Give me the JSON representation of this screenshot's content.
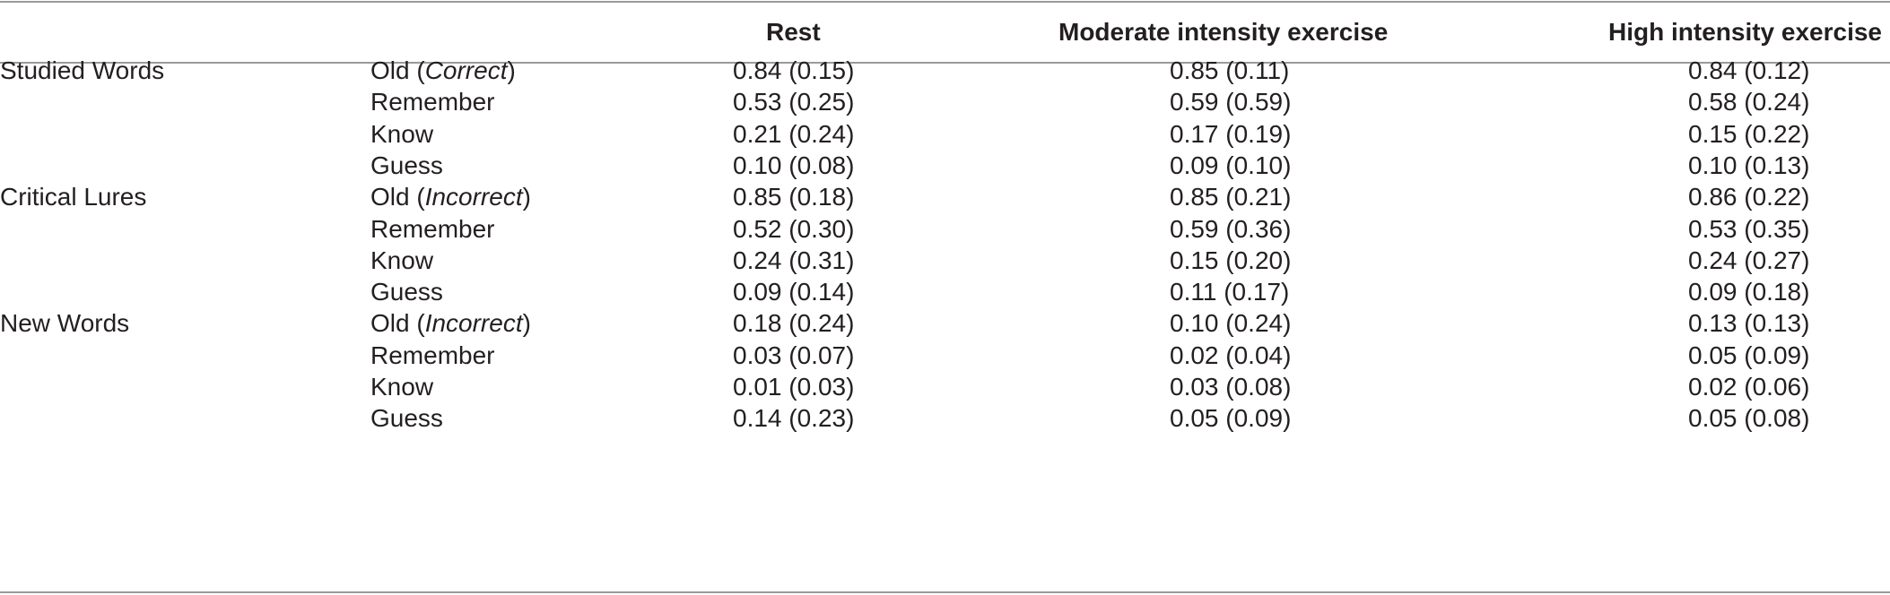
{
  "header": {
    "col_group": "",
    "col_response": "",
    "col_rest": "Rest",
    "col_moderate": "Moderate intensity exercise",
    "col_high": "High intensity exercise"
  },
  "rows": [
    {
      "group": "Studied Words",
      "resp_pre": "Old (",
      "resp_em": "Correct",
      "resp_post": ")",
      "rest": "0.84 (0.15)",
      "moderate": "0.85 (0.11)",
      "high": "0.84 (0.12)"
    },
    {
      "group": "",
      "resp_pre": "Remember",
      "resp_em": "",
      "resp_post": "",
      "rest": "0.53 (0.25)",
      "moderate": "0.59 (0.59)",
      "high": "0.58 (0.24)"
    },
    {
      "group": "",
      "resp_pre": "Know",
      "resp_em": "",
      "resp_post": "",
      "rest": "0.21 (0.24)",
      "moderate": "0.17 (0.19)",
      "high": "0.15 (0.22)"
    },
    {
      "group": "",
      "resp_pre": "Guess",
      "resp_em": "",
      "resp_post": "",
      "rest": "0.10 (0.08)",
      "moderate": "0.09 (0.10)",
      "high": "0.10 (0.13)"
    },
    {
      "group": "Critical Lures",
      "resp_pre": "Old (",
      "resp_em": "Incorrect",
      "resp_post": ")",
      "rest": "0.85 (0.18)",
      "moderate": "0.85 (0.21)",
      "high": "0.86 (0.22)"
    },
    {
      "group": "",
      "resp_pre": "Remember",
      "resp_em": "",
      "resp_post": "",
      "rest": "0.52 (0.30)",
      "moderate": "0.59 (0.36)",
      "high": "0.53 (0.35)"
    },
    {
      "group": "",
      "resp_pre": "Know",
      "resp_em": "",
      "resp_post": "",
      "rest": "0.24 (0.31)",
      "moderate": "0.15 (0.20)",
      "high": "0.24 (0.27)"
    },
    {
      "group": "",
      "resp_pre": "Guess",
      "resp_em": "",
      "resp_post": "",
      "rest": "0.09 (0.14)",
      "moderate": "0.11 (0.17)",
      "high": "0.09 (0.18)"
    },
    {
      "group": "New Words",
      "resp_pre": "Old (",
      "resp_em": "Incorrect",
      "resp_post": ")",
      "rest": "0.18 (0.24)",
      "moderate": "0.10 (0.24)",
      "high": "0.13 (0.13)"
    },
    {
      "group": "",
      "resp_pre": "Remember",
      "resp_em": "",
      "resp_post": "",
      "rest": "0.03 (0.07)",
      "moderate": "0.02 (0.04)",
      "high": "0.05 (0.09)"
    },
    {
      "group": "",
      "resp_pre": "Know",
      "resp_em": "",
      "resp_post": "",
      "rest": "0.01 (0.03)",
      "moderate": "0.03 (0.08)",
      "high": "0.02 (0.06)"
    },
    {
      "group": "",
      "resp_pre": "Guess",
      "resp_em": "",
      "resp_post": "",
      "rest": "0.14 (0.23)",
      "moderate": "0.05 (0.09)",
      "high": "0.05 (0.08)"
    }
  ]
}
